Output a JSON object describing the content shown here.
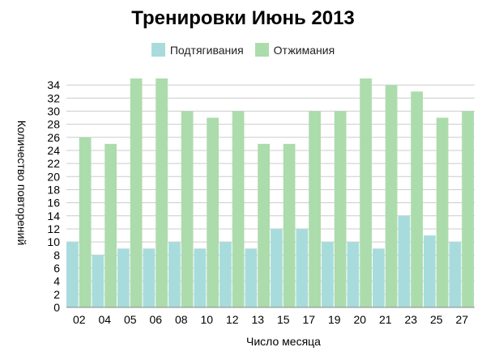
{
  "chart_data": {
    "type": "bar",
    "title": "Тренировки Июнь 2013",
    "xlabel": "Число месяца",
    "ylabel": "Количество повторений",
    "categories": [
      "02",
      "04",
      "05",
      "06",
      "08",
      "10",
      "12",
      "13",
      "15",
      "17",
      "19",
      "20",
      "21",
      "23",
      "25",
      "27"
    ],
    "series": [
      {
        "name": "Подтягивания",
        "color": "#a8dcdc",
        "values": [
          10,
          8,
          9,
          9,
          10,
          9,
          10,
          9,
          12,
          12,
          10,
          10,
          9,
          14,
          11,
          10
        ]
      },
      {
        "name": "Отжимания",
        "color": "#acdcac",
        "values": [
          26,
          25,
          35,
          35,
          30,
          29,
          30,
          25,
          25,
          30,
          30,
          35,
          34,
          33,
          29,
          30
        ]
      }
    ],
    "ylim": [
      0,
      35
    ],
    "yticks": [
      0,
      2,
      4,
      6,
      8,
      10,
      12,
      14,
      16,
      18,
      20,
      22,
      24,
      26,
      28,
      30,
      32,
      34
    ],
    "grid": true,
    "legend_position": "top-center"
  }
}
